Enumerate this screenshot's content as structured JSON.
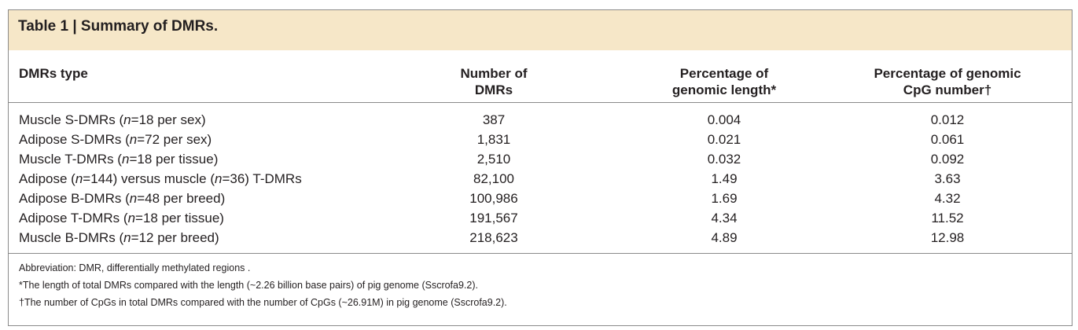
{
  "table": {
    "title": "Table 1 | Summary of DMRs.",
    "headers": {
      "type": "DMRs type",
      "number_line1": "Number of",
      "number_line2": "DMRs",
      "length_line1": "Percentage of",
      "length_line2": "genomic length*",
      "cpg_line1": "Percentage of genomic",
      "cpg_line2": "CpG number†"
    },
    "rows": [
      {
        "pre": "Muscle S-DMRs (",
        "n": "n",
        "post": "=18 per sex)",
        "number": "387",
        "length": "0.004",
        "cpg": "0.012"
      },
      {
        "pre": "Adipose S-DMRs (",
        "n": "n",
        "post": "=72 per sex)",
        "number": "1,831",
        "length": "0.021",
        "cpg": "0.061"
      },
      {
        "pre": "Muscle T-DMRs (",
        "n": "n",
        "post": "=18 per tissue)",
        "number": "2,510",
        "length": "0.032",
        "cpg": "0.092"
      },
      {
        "pre": "Adipose (",
        "n": "n",
        "post": "=144) versus muscle (",
        "n2": "n",
        "post2": "=36) T-DMRs",
        "number": "82,100",
        "length": "1.49",
        "cpg": "3.63"
      },
      {
        "pre": "Adipose B-DMRs (",
        "n": "n",
        "post": "=48 per breed)",
        "number": "100,986",
        "length": "1.69",
        "cpg": "4.32"
      },
      {
        "pre": "Adipose T-DMRs (",
        "n": "n",
        "post": "=18 per tissue)",
        "number": "191,567",
        "length": "4.34",
        "cpg": "11.52"
      },
      {
        "pre": "Muscle B-DMRs (",
        "n": "n",
        "post": "=12 per breed)",
        "number": "218,623",
        "length": "4.89",
        "cpg": "12.98"
      }
    ],
    "footnotes": {
      "abbreviation": "Abbreviation: DMR, differentially methylated regions .",
      "length_note": "*The length of total DMRs compared with the length (~2.26 billion base pairs) of pig genome (Sscrofa9.2).",
      "cpg_note": "†The number of CpGs in total DMRs compared with the number of CpGs (~26.91M) in pig genome (Sscrofa9.2)."
    }
  },
  "colors": {
    "title_background": "#f6e7c8",
    "rule": "#8a8a8a",
    "text": "#231f20"
  }
}
